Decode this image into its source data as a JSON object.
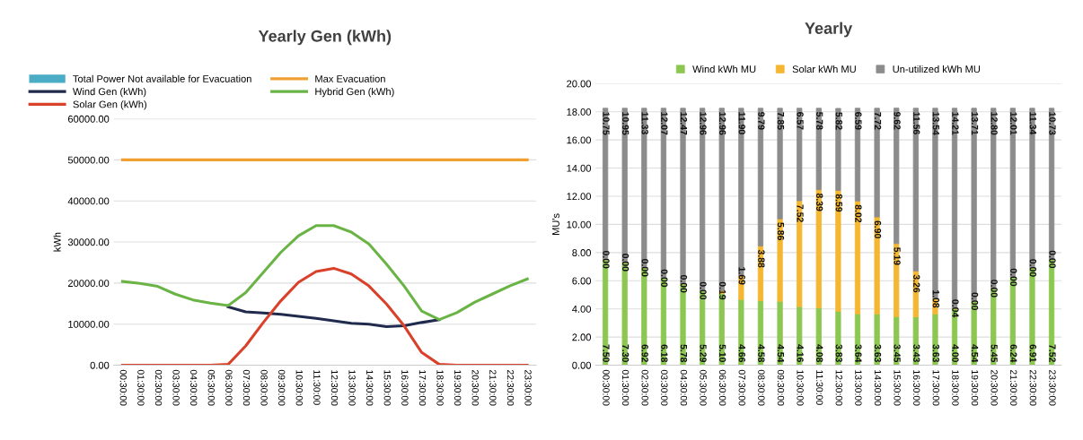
{
  "chart_data": [
    {
      "type": "line",
      "title": "Yearly Gen (kWh)",
      "ylabel": "kWh",
      "categories": [
        "00:30:00",
        "01:30:00",
        "02:30:00",
        "03:30:00",
        "04:30:00",
        "05:30:00",
        "06:30:00",
        "07:30:00",
        "08:30:00",
        "09:30:00",
        "10:30:00",
        "11:30:00",
        "12:30:00",
        "13:30:00",
        "14:30:00",
        "15:30:00",
        "16:30:00",
        "17:30:00",
        "18:30:00",
        "19:30:00",
        "20:30:00",
        "21:30:00",
        "22:30:00",
        "23:30:00"
      ],
      "series": [
        {
          "name": "Total Power Not available for Evacuation",
          "type": "area",
          "color": "#4bacc6",
          "values": [
            null,
            null,
            null,
            null,
            null,
            null,
            null,
            null,
            null,
            null,
            null,
            null,
            null,
            null,
            null,
            null,
            null,
            null,
            null,
            null,
            null,
            null,
            null,
            null
          ]
        },
        {
          "name": "Wind Gen (kWh)",
          "color": "#1f2a4d",
          "values": [
            null,
            null,
            null,
            null,
            null,
            null,
            14200,
            13000,
            12700,
            12400,
            11900,
            11400,
            10800,
            10200,
            10000,
            9400,
            9600,
            10400,
            11100,
            null,
            null,
            null,
            null,
            null
          ]
        },
        {
          "name": "Solar Gen (kWh)",
          "color": "#d9412b",
          "values": [
            0,
            0,
            0,
            0,
            0,
            0,
            200,
            4700,
            10400,
            15700,
            20200,
            22800,
            23600,
            22200,
            19300,
            14900,
            9600,
            3100,
            200,
            0,
            0,
            0,
            0,
            0
          ]
        },
        {
          "name": "Max Evacuation",
          "color": "#f0a030",
          "values": [
            50000,
            50000,
            50000,
            50000,
            50000,
            50000,
            50000,
            50000,
            50000,
            50000,
            50000,
            50000,
            50000,
            50000,
            50000,
            50000,
            50000,
            50000,
            50000,
            50000,
            50000,
            50000,
            50000,
            50000
          ]
        },
        {
          "name": "Hybrid Gen (kWh)",
          "color": "#6ab446",
          "values": [
            20400,
            19900,
            19200,
            17300,
            15900,
            15100,
            14500,
            17700,
            22600,
            27500,
            31500,
            34000,
            34000,
            32400,
            29500,
            24600,
            19300,
            13200,
            11100,
            12800,
            15300,
            17300,
            19300,
            21000
          ]
        }
      ],
      "ylim": [
        0,
        60000
      ],
      "yticks": [
        {
          "value": 0,
          "label": "0.00"
        },
        {
          "value": 10000,
          "label": "10000.00"
        },
        {
          "value": 20000,
          "label": "20000.00"
        },
        {
          "value": 30000,
          "label": "30000.00"
        },
        {
          "value": 40000,
          "label": "40000.00"
        },
        {
          "value": 50000,
          "label": "50000.00"
        },
        {
          "value": 60000,
          "label": "60000.00"
        }
      ],
      "grid": "y",
      "legend": "top left"
    },
    {
      "type": "bar",
      "title": "Yearly",
      "ylabel": "MU's",
      "stacked": true,
      "categories": [
        "00:30:00",
        "01:30:00",
        "02:30:00",
        "03:30:00",
        "04:30:00",
        "05:30:00",
        "06:30:00",
        "07:30:00",
        "08:30:00",
        "09:30:00",
        "10:30:00",
        "11:30:00",
        "12:30:00",
        "13:30:00",
        "14:30:00",
        "15:30:00",
        "16:30:00",
        "17:30:00",
        "18:30:00",
        "19:30:00",
        "20:30:00",
        "21:30:00",
        "22:30:00",
        "23:30:00"
      ],
      "series": [
        {
          "name": "Wind kWh MU",
          "color": "#8cc751",
          "values": [
            7.5,
            7.3,
            6.92,
            6.18,
            5.78,
            5.29,
            5.1,
            4.66,
            4.58,
            4.54,
            4.16,
            4.08,
            3.83,
            3.64,
            3.63,
            3.45,
            3.43,
            3.63,
            4.0,
            4.54,
            5.45,
            6.24,
            6.91,
            7.52
          ],
          "value_labels": [
            "7.50",
            "7.30",
            "6.92",
            "6.18",
            "5.78",
            "5.29",
            "5.10",
            "4.66",
            "4.58",
            "4.54",
            "4.16",
            "4.08",
            "3.83",
            "3.64",
            "3.63",
            "3.45",
            "3.43",
            "3.63",
            "4.00",
            "4.54",
            "5.45",
            "6.24",
            "6.91",
            "7.52"
          ]
        },
        {
          "name": "Solar kWh MU",
          "color": "#f5b731",
          "values": [
            0,
            0,
            0,
            0,
            0,
            0,
            0.19,
            1.69,
            3.88,
            5.86,
            7.52,
            8.39,
            8.59,
            8.02,
            6.9,
            5.19,
            3.26,
            1.08,
            0.04,
            0,
            0,
            0,
            0,
            0
          ],
          "value_labels": [
            "0.00",
            "0.00",
            "0.00",
            "0.00",
            "0.00",
            "0.00",
            "0.19",
            "1.69",
            "3.88",
            "5.86",
            "7.52",
            "8.39",
            "8.59",
            "8.02",
            "6.90",
            "5.19",
            "3.26",
            "1.08",
            "0.04",
            "0.00",
            "0.00",
            "0.00",
            "0.00",
            "0.00"
          ]
        },
        {
          "name": "Un-utilized kWh MU",
          "color": "#8c8c8c",
          "values": [
            10.75,
            10.95,
            11.33,
            12.07,
            12.47,
            12.96,
            12.96,
            11.9,
            9.79,
            7.85,
            6.57,
            5.78,
            5.82,
            6.59,
            7.72,
            9.62,
            11.56,
            13.54,
            14.21,
            13.71,
            12.8,
            12.01,
            11.34,
            10.73
          ],
          "value_labels": [
            "10.75",
            "10.95",
            "11.33",
            "12.07",
            "12.47",
            "12.96",
            "12.96",
            "11.90",
            "9.79",
            "7.85",
            "6.57",
            "5.78",
            "5.82",
            "6.59",
            "7.72",
            "9.62",
            "11.56",
            "13.54",
            "14.21",
            "13.71",
            "12.80",
            "12.01",
            "11.34",
            "10.73"
          ]
        }
      ],
      "ylim": [
        0,
        20
      ],
      "yticks": [
        {
          "value": 0,
          "label": "0.00"
        },
        {
          "value": 2,
          "label": "2.00"
        },
        {
          "value": 4,
          "label": "4.00"
        },
        {
          "value": 6,
          "label": "6.00"
        },
        {
          "value": 8,
          "label": "8.00"
        },
        {
          "value": 10,
          "label": "10.00"
        },
        {
          "value": 12,
          "label": "12.00"
        },
        {
          "value": 14,
          "label": "14.00"
        },
        {
          "value": 16,
          "label": "16.00"
        },
        {
          "value": 18,
          "label": "18.00"
        },
        {
          "value": 20,
          "label": "20.00"
        }
      ],
      "grid": "y",
      "legend": "top"
    }
  ]
}
